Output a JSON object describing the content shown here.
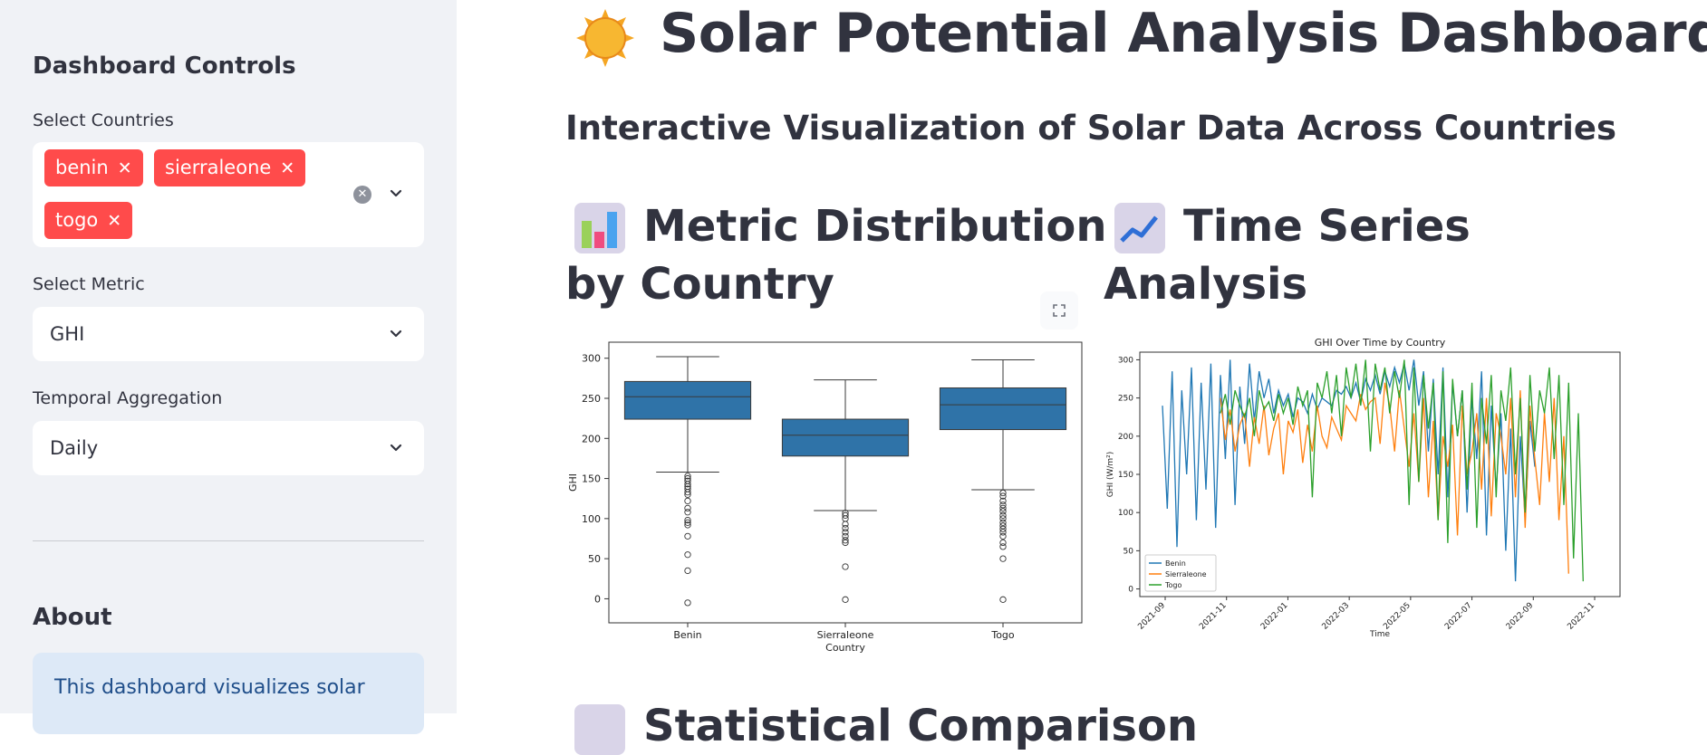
{
  "sidebar": {
    "title": "Dashboard Controls",
    "countries_label": "Select Countries",
    "countries": [
      "benin",
      "sierraleone",
      "togo"
    ],
    "metric_label": "Select Metric",
    "metric_value": "GHI",
    "aggregation_label": "Temporal Aggregation",
    "aggregation_value": "Daily",
    "about_title": "About",
    "about_text": "This dashboard visualizes solar"
  },
  "main": {
    "title": "Solar Potential Analysis Dashboard",
    "subtitle": "Interactive Visualization of Solar Data Across Countries",
    "section1_line1": "Metric Distribution",
    "section1_line2": "by Country",
    "section2_line1": "Time Series",
    "section2_line2": "Analysis",
    "section3_partial": "Statistical Comparison"
  },
  "colors": {
    "accent": "#ff4b4b",
    "box": "#2f73a8",
    "benin": "#1f77b4",
    "sierraleone": "#ff7f0e",
    "togo": "#2ca02c"
  },
  "chart_data": [
    {
      "type": "box",
      "title": "",
      "xlabel": "Country",
      "ylabel": "GHI",
      "categories": [
        "Benin",
        "Sierraleone",
        "Togo"
      ],
      "ylim": [
        -30,
        320
      ],
      "yticks": [
        0,
        50,
        100,
        150,
        200,
        250,
        300
      ],
      "boxes": [
        {
          "q1": 224,
          "median": 252,
          "q3": 271,
          "whisker_low": 158,
          "whisker_high": 302,
          "outliers": [
            153,
            150,
            147,
            143,
            140,
            137,
            133,
            130,
            122,
            113,
            108,
            98,
            95,
            92,
            78,
            55,
            35,
            -5
          ]
        },
        {
          "q1": 178,
          "median": 204,
          "q3": 224,
          "whisker_low": 110,
          "whisker_high": 273,
          "outliers": [
            107,
            104,
            100,
            93,
            88,
            83,
            78,
            73,
            70,
            40,
            -1
          ]
        },
        {
          "q1": 211,
          "median": 242,
          "q3": 263,
          "whisker_low": 136,
          "whisker_high": 298,
          "outliers": [
            132,
            128,
            122,
            117,
            113,
            109,
            104,
            100,
            95,
            91,
            87,
            83,
            78,
            70,
            65,
            50,
            -1
          ]
        }
      ]
    },
    {
      "type": "line",
      "title": "GHI Over Time by Country",
      "xlabel": "Time",
      "ylabel": "GHI (W/m²)",
      "ylim": [
        -10,
        310
      ],
      "yticks": [
        0,
        50,
        100,
        150,
        200,
        250,
        300
      ],
      "xticks": [
        "2021-09",
        "2021-11",
        "2022-01",
        "2022-03",
        "2022-05",
        "2022-07",
        "2022-09",
        "2022-11"
      ],
      "legend": "lower-left",
      "series": [
        {
          "name": "Benin",
          "start": 0,
          "values": [
            240,
            105,
            285,
            55,
            260,
            150,
            290,
            90,
            270,
            130,
            295,
            80,
            280,
            170,
            300,
            110,
            265,
            190,
            295,
            220,
            285,
            250,
            275,
            230,
            260,
            240,
            255,
            225,
            250,
            245,
            230,
            255,
            235,
            250,
            245,
            240,
            260,
            255,
            265,
            250,
            270,
            245,
            275,
            260,
            280,
            255,
            285,
            265,
            290,
            270,
            295,
            260,
            300,
            240,
            285,
            180,
            275,
            150,
            290,
            120,
            270,
            200,
            260,
            100,
            250,
            170,
            285,
            70,
            240,
            130,
            230,
            50,
            210,
            10,
            200,
            90,
            220,
            160
          ]
        },
        {
          "name": "Sierraleone",
          "start": 12,
          "values": [
            250,
            195,
            235,
            180,
            215,
            230,
            160,
            225,
            190,
            240,
            175,
            210,
            230,
            150,
            220,
            205,
            235,
            165,
            215,
            180,
            240,
            200,
            185,
            225,
            210,
            195,
            240,
            230,
            220,
            255,
            235,
            245,
            250,
            190,
            270,
            240,
            180,
            260,
            210,
            160,
            230,
            140,
            250,
            120,
            220,
            90,
            200,
            160,
            215,
            70,
            240,
            150,
            180,
            230,
            130,
            250,
            95,
            230,
            200,
            150,
            250,
            120,
            260,
            80,
            240,
            170,
            110,
            230,
            140,
            250,
            90,
            200,
            20
          ]
        },
        {
          "name": "Togo",
          "start": 12,
          "values": [
            230,
            255,
            215,
            260,
            240,
            225,
            250,
            200,
            260,
            235,
            245,
            220,
            255,
            230,
            250,
            215,
            265,
            240,
            260,
            120,
            270,
            250,
            285,
            230,
            280,
            200,
            290,
            250,
            295,
            240,
            300,
            180,
            295,
            260,
            290,
            230,
            285,
            250,
            300,
            110,
            290,
            140,
            280,
            210,
            270,
            90,
            285,
            60,
            275,
            200,
            260,
            130,
            270,
            80,
            250,
            190,
            280,
            120,
            260,
            220,
            290,
            150,
            250,
            100,
            280,
            180,
            260,
            230,
            290,
            170,
            280,
            110,
            270,
            40,
            230,
            10
          ]
        }
      ]
    }
  ]
}
